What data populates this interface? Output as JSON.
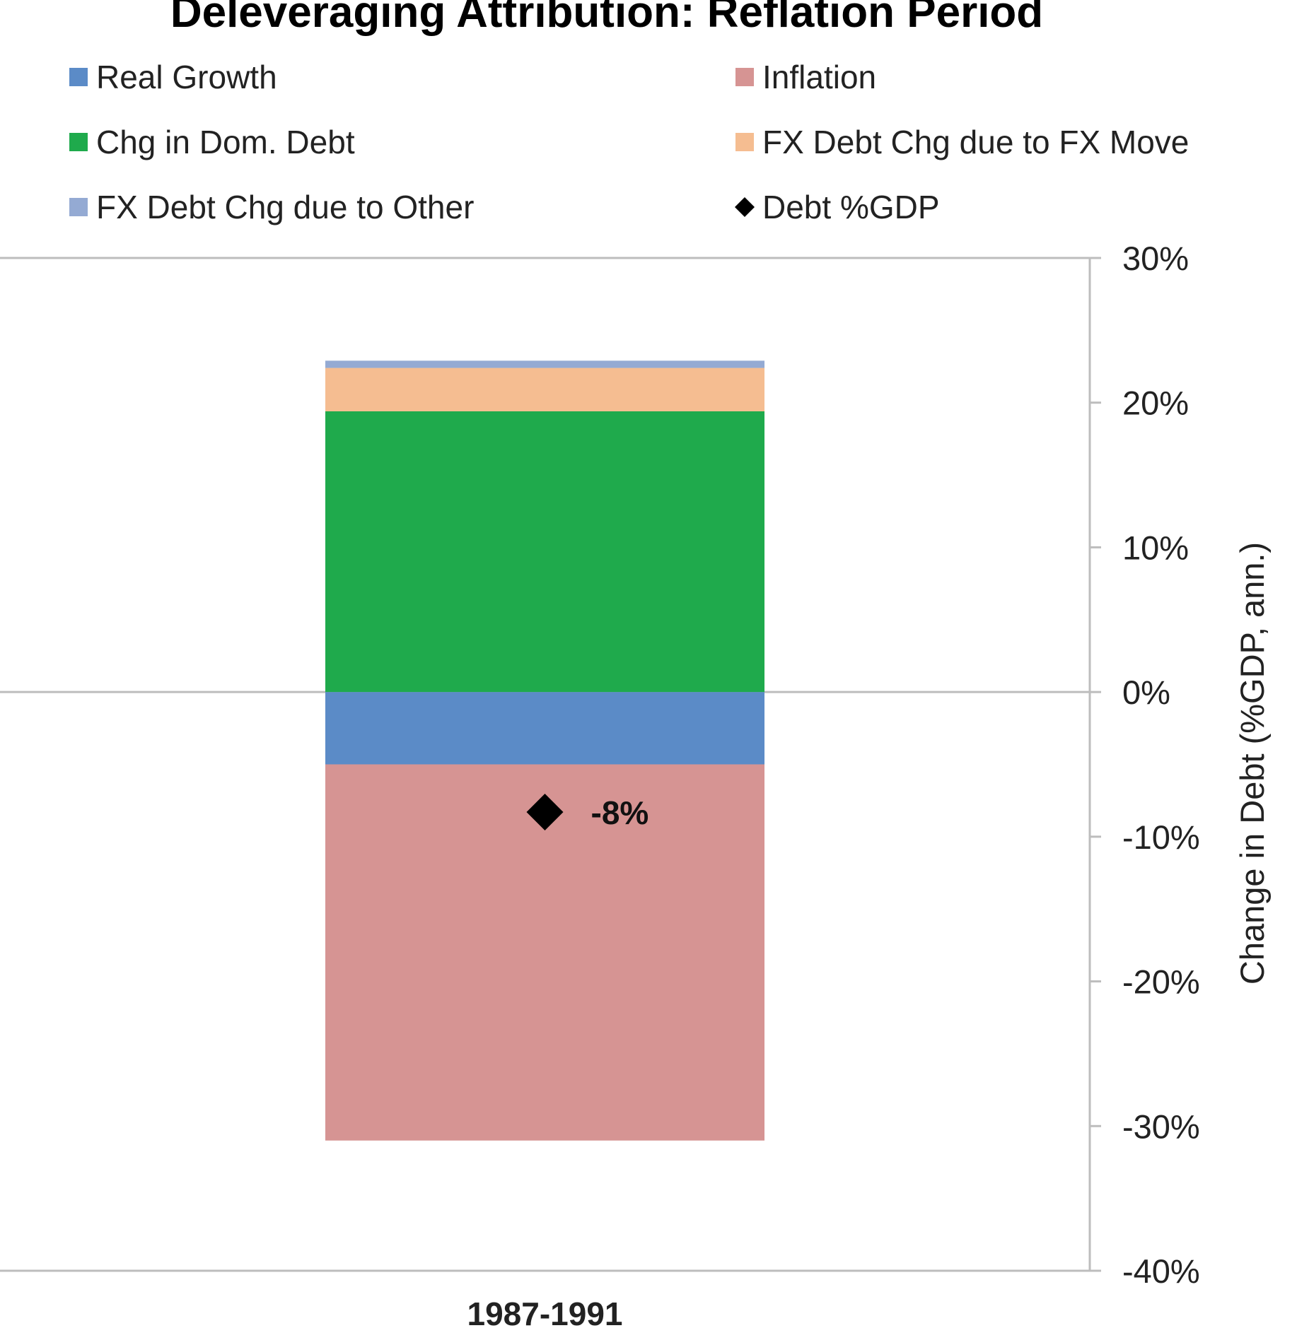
{
  "chart_data": {
    "type": "bar",
    "stacked": true,
    "title": "Deleveraging Attribution: Reflation Period",
    "ylabel": "Change in Debt (%GDP, ann.)",
    "y_axis_position": "right",
    "ylim": [
      -40,
      30
    ],
    "ytick_values": [
      30,
      20,
      10,
      0,
      -10,
      -20,
      -30,
      -40
    ],
    "ytick_labels": [
      "30%",
      "20%",
      "10%",
      "0%",
      "-10%",
      "-20%",
      "-30%",
      "-40%"
    ],
    "categories": [
      "1987-1991"
    ],
    "legend_placement": "top",
    "series": [
      {
        "name": "Real Growth",
        "values": [
          -5
        ],
        "color": "#5B8BC7"
      },
      {
        "name": "Inflation",
        "values": [
          -26
        ],
        "color": "#D69493"
      },
      {
        "name": "Chg in Dom. Debt",
        "values": [
          19.4
        ],
        "color": "#1FAA4C"
      },
      {
        "name": "FX Debt Chg due to FX Move",
        "values": [
          3.0
        ],
        "color": "#F5BD91"
      },
      {
        "name": "FX Debt Chg due to Other",
        "values": [
          0.5
        ],
        "color": "#94AAD3"
      }
    ],
    "marker_series": {
      "name": "Debt %GDP",
      "values": [
        -8.3
      ],
      "data_labels": [
        "-8%"
      ],
      "marker": "diamond",
      "color": "#000000"
    }
  }
}
